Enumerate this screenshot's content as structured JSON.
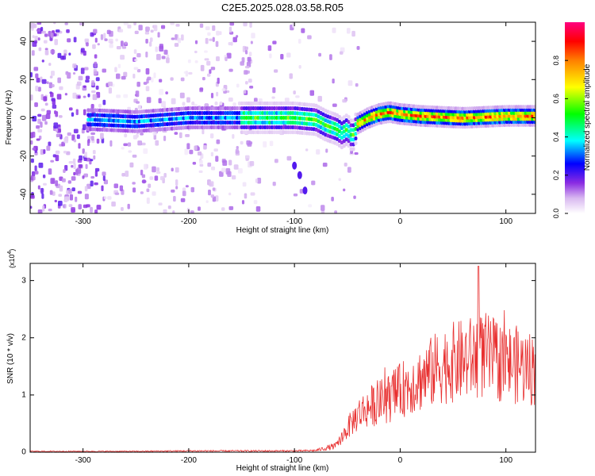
{
  "figure": {
    "title": "C2E5.2025.028.03.58.R05"
  },
  "chart_data": [
    {
      "type": "heatmap",
      "title": "C2E5.2025.028.03.58.R05",
      "xlabel": "Height of straight line (km)",
      "ylabel": "Frequency (Hz)",
      "xlim": [
        -350,
        128
      ],
      "ylim": [
        -50,
        50
      ],
      "xticks": [
        -300,
        -200,
        -100,
        0,
        100
      ],
      "yticks": [
        -40,
        -20,
        0,
        20,
        40
      ],
      "colorbar": {
        "label": "Normalized spectral amplitude",
        "range": [
          0,
          1
        ],
        "ticks": [
          "0.0",
          "0.2",
          "0.4",
          "0.6",
          "0.8"
        ],
        "colors": [
          "#ffffff",
          "#d8b8f0",
          "#8a2be2",
          "#0000ff",
          "#00ffff",
          "#00ff00",
          "#ffff00",
          "#ff8000",
          "#ff0000",
          "#ff0080"
        ]
      },
      "ridge": {
        "name": "dominant frequency",
        "x": [
          -290,
          -250,
          -200,
          -150,
          -100,
          -80,
          -70,
          -60,
          -55,
          -50,
          -45,
          -40,
          -30,
          -20,
          -10,
          0,
          20,
          60,
          100,
          128
        ],
        "y": [
          -1,
          -2,
          0,
          0,
          0,
          -1,
          -4,
          -6,
          -8,
          -6,
          -10,
          -3,
          0,
          2,
          3,
          2,
          1,
          0,
          1,
          1
        ]
      },
      "tail": {
        "x": [
          -100,
          -95,
          -90
        ],
        "y": [
          -25,
          -30,
          -38
        ]
      }
    },
    {
      "type": "line",
      "title": "",
      "xlabel": "Height of straight line (km)",
      "ylabel": "SNR (10 * v/v)",
      "multiplier_label": "(x10",
      "multiplier_exp": "4",
      "xlim": [
        -350,
        128
      ],
      "ylim": [
        0,
        3.3
      ],
      "xticks": [
        -300,
        -200,
        -100,
        0,
        100
      ],
      "yticks": [
        0,
        1,
        2,
        3
      ],
      "color": "#e83030",
      "envelope": {
        "x": [
          -350,
          -300,
          -250,
          -200,
          -150,
          -100,
          -80,
          -60,
          -50,
          -40,
          -30,
          -20,
          -10,
          0,
          10,
          20,
          30,
          40,
          50,
          60,
          70,
          80,
          90,
          100,
          110,
          120,
          128
        ],
        "y": [
          0.02,
          0.02,
          0.02,
          0.03,
          0.03,
          0.03,
          0.04,
          0.15,
          0.5,
          0.8,
          0.95,
          1.05,
          1.15,
          1.3,
          1.45,
          1.55,
          1.7,
          1.85,
          1.9,
          1.95,
          2.0,
          2.05,
          1.95,
          1.9,
          1.85,
          1.8,
          1.75
        ]
      },
      "peak": {
        "x": 74,
        "y": 3.25
      }
    }
  ]
}
